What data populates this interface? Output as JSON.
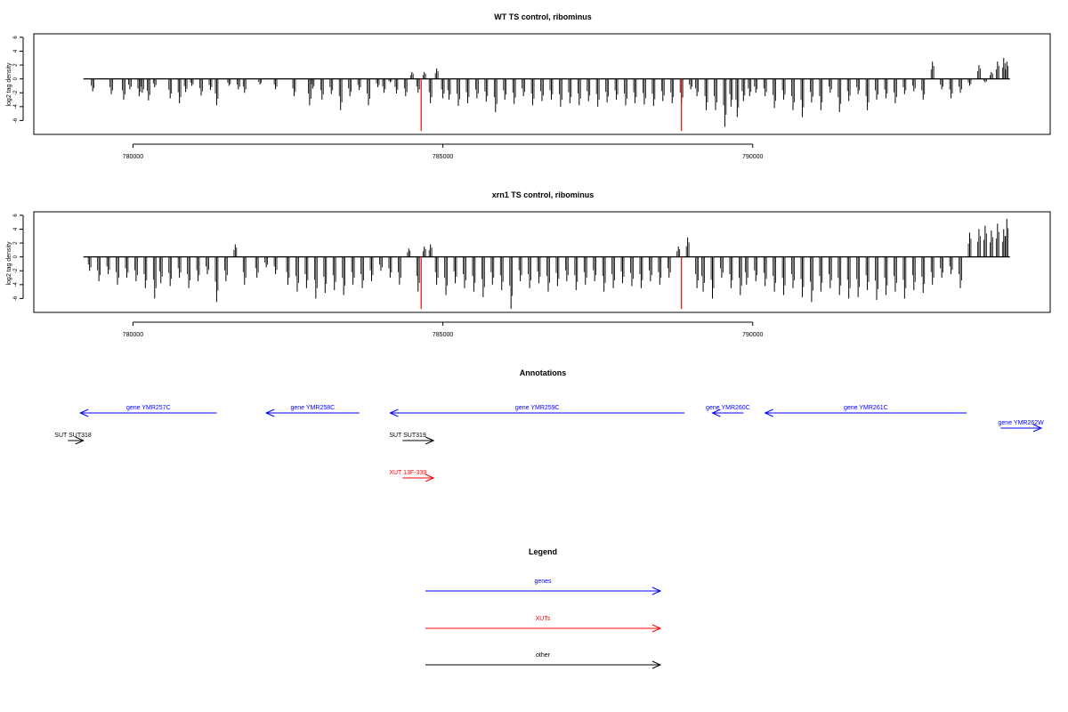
{
  "colors": {
    "gene": "#0000ff",
    "xut": "#ff0000",
    "other": "#000000",
    "bar": "#000000",
    "highlight": "#ff0000"
  },
  "chart_data": [
    {
      "type": "bar",
      "title": "WT TS control, ribominus",
      "ylabel": "log2 tag density",
      "xlim": [
        778400,
        794800
      ],
      "ylim": [
        -8,
        6.5
      ],
      "yticks": [
        6,
        4,
        2,
        0,
        -2,
        -4,
        -6
      ],
      "xticks": [
        780000,
        785000,
        790000
      ],
      "xtick_labels": [
        "780000",
        "785000",
        "790000"
      ],
      "baseline_range": [
        779200,
        794150
      ],
      "highlight_positions": [
        784650,
        788850
      ],
      "highlight_value": -7.5,
      "series": [
        {
          "x": [
            779350,
            779650,
            779850,
            779950,
            780100,
            780150,
            780250,
            780350,
            780600,
            780750,
            780850,
            780950,
            781100,
            781250,
            781350,
            781550,
            781700,
            781800,
            782050,
            782300,
            782600,
            782850,
            782900,
            783050,
            783200,
            783350,
            783500,
            783650,
            783800,
            783950,
            784050,
            784150,
            784250,
            784400,
            784500,
            784600,
            784700,
            784800,
            784900,
            785000,
            785100,
            785250,
            785400,
            785550,
            785700,
            785850,
            786000,
            786150,
            786300,
            786450,
            786600,
            786750,
            786900,
            787050,
            787200,
            787350,
            787500,
            787650,
            787800,
            787950,
            788100,
            788250,
            788400,
            788550,
            788700,
            788850,
            789000,
            789100,
            789250,
            789400,
            789550,
            789650,
            789750,
            789850,
            789950,
            790050,
            790200,
            790350,
            790500,
            790650,
            790800,
            790950,
            791100,
            791250,
            791400,
            791550,
            791700,
            791850,
            792000,
            792150,
            792300,
            792450,
            792600,
            792750,
            792900,
            793050,
            793200,
            793350,
            793500,
            793650,
            793750,
            793850,
            793950,
            794050,
            794100
          ],
          "y": [
            -1.8,
            -2.2,
            -3.0,
            -1.5,
            -2.5,
            -2.0,
            -3.1,
            -1.2,
            -2.8,
            -3.5,
            -1.9,
            -1.0,
            -2.4,
            -1.6,
            -3.8,
            -1.0,
            -1.5,
            -2.0,
            -0.8,
            -1.5,
            -2.5,
            -3.8,
            -1.4,
            -3.0,
            -2.2,
            -4.5,
            -2.5,
            -1.6,
            -3.8,
            -1.2,
            -2.0,
            -0.5,
            -2.1,
            -2.5,
            1.0,
            -2.0,
            1.0,
            -3.5,
            1.5,
            -2.8,
            -3.0,
            -3.9,
            -3.5,
            -2.8,
            -3.3,
            -4.8,
            -3.0,
            -3.6,
            -2.5,
            -3.8,
            -3.2,
            -3.0,
            -4.0,
            -3.5,
            -3.8,
            -3.2,
            -4.0,
            -3.4,
            -3.0,
            -3.8,
            -3.5,
            -3.7,
            -3.9,
            -3.2,
            -3.5,
            -3.6,
            -1.5,
            -2.5,
            -4.5,
            -4.5,
            -6.9,
            -4.0,
            -5.5,
            -3.2,
            -2.5,
            -2.0,
            -2.5,
            -4.2,
            -3.0,
            -4.5,
            -5.5,
            -3.4,
            -4.5,
            -2.0,
            -4.8,
            -3.2,
            -2.2,
            -4.5,
            -3.0,
            -2.8,
            -3.5,
            -2.2,
            -1.8,
            -3.0,
            2.5,
            -1.5,
            -2.8,
            -2.0,
            -1.0,
            2.0,
            -0.5,
            1.0,
            2.5,
            3.0,
            2.5
          ]
        }
      ]
    },
    {
      "type": "bar",
      "title": "xrn1 TS control, ribominus",
      "ylabel": "log2 tag density",
      "xlim": [
        778400,
        794800
      ],
      "ylim": [
        -8,
        6.5
      ],
      "yticks": [
        6,
        4,
        2,
        0,
        -2,
        -4,
        -6
      ],
      "xticks": [
        780000,
        785000,
        790000
      ],
      "xtick_labels": [
        "780000",
        "785000",
        "790000"
      ],
      "baseline_range": [
        779200,
        794150
      ],
      "highlight_positions": [
        784650,
        788850
      ],
      "highlight_value": -7.5,
      "series": [
        {
          "x": [
            779300,
            779450,
            779600,
            779750,
            779900,
            780050,
            780200,
            780350,
            780450,
            780600,
            780750,
            780900,
            781050,
            781200,
            781350,
            781500,
            781650,
            781800,
            782000,
            782150,
            782300,
            782500,
            782650,
            782800,
            782950,
            783100,
            783250,
            783400,
            783550,
            783700,
            783850,
            784000,
            784150,
            784300,
            784450,
            784600,
            784700,
            784800,
            784900,
            785050,
            785200,
            785350,
            785500,
            785650,
            785800,
            785950,
            786100,
            786250,
            786400,
            786550,
            786700,
            786850,
            787000,
            787150,
            787300,
            787450,
            787600,
            787750,
            787900,
            788050,
            788200,
            788350,
            788500,
            788650,
            788800,
            788950,
            789100,
            789200,
            789350,
            789500,
            789650,
            789800,
            789900,
            790050,
            790200,
            790350,
            790500,
            790650,
            790800,
            790950,
            791100,
            791250,
            791400,
            791550,
            791700,
            791850,
            792000,
            792150,
            792300,
            792450,
            792600,
            792750,
            792900,
            793050,
            793200,
            793350,
            793500,
            793650,
            793750,
            793850,
            793950,
            794050,
            794100
          ],
          "y": [
            -2.0,
            -3.5,
            -2.5,
            -4.0,
            -3.0,
            -3.5,
            -4.5,
            -6.0,
            -3.8,
            -4.2,
            -3.0,
            -4.5,
            -3.5,
            -2.5,
            -6.5,
            -3.5,
            1.8,
            -4.0,
            -3.0,
            -1.5,
            -2.5,
            -4.0,
            -5.0,
            -4.5,
            -6.0,
            -5.2,
            -4.8,
            -5.5,
            -4.0,
            -4.5,
            -3.5,
            -2.0,
            -3.0,
            -4.0,
            1.2,
            -5.0,
            1.5,
            1.8,
            -4.0,
            -5.5,
            -3.8,
            -4.5,
            -5.0,
            -5.8,
            -4.0,
            -4.8,
            -7.5,
            -3.5,
            -4.5,
            -3.8,
            -5.0,
            -4.2,
            -3.5,
            -4.8,
            -4.0,
            -3.5,
            -5.0,
            -4.5,
            -3.8,
            -4.2,
            -4.5,
            -3.5,
            -4.0,
            -3.0,
            1.5,
            2.8,
            -4.5,
            -5.0,
            -6.0,
            -3.0,
            -4.5,
            -5.5,
            -4.0,
            -3.5,
            -4.2,
            -5.0,
            -5.5,
            -4.5,
            -5.8,
            -6.5,
            -5.0,
            -4.5,
            -5.5,
            -6.0,
            -5.8,
            -4.8,
            -6.2,
            -5.5,
            -5.0,
            -6.0,
            -4.8,
            -5.2,
            -4.0,
            -3.0,
            -2.5,
            -4.5,
            3.5,
            4.0,
            4.5,
            3.8,
            4.8,
            4.0,
            5.5
          ]
        }
      ]
    }
  ],
  "annotations": {
    "title": "Annotations",
    "genes": [
      {
        "label": "gene YMR257C",
        "start": 781350,
        "end": 779150,
        "row": 0
      },
      {
        "label": "gene YMR258C",
        "start": 783650,
        "end": 782150,
        "row": 0
      },
      {
        "label": "gene YMR259C",
        "start": 788900,
        "end": 784150,
        "row": 0
      },
      {
        "label": "gene YMR260C",
        "start": 789850,
        "end": 789350,
        "row": 0
      },
      {
        "label": "gene YMR261C",
        "start": 793450,
        "end": 790200,
        "row": 0
      },
      {
        "label": "gene YMR262W",
        "start": 794000,
        "end": 794900,
        "row": -1
      }
    ],
    "others": [
      {
        "label": "SUT SUT318",
        "start": 778950,
        "end": 779200,
        "row": 1
      },
      {
        "label": "SUT SUT319",
        "start": 784350,
        "end": 784850,
        "row": 1
      }
    ],
    "xuts": [
      {
        "label": "XUT 13F-339",
        "start": 784350,
        "end": 784850,
        "row": 2
      }
    ]
  },
  "legend": {
    "title": "Legend",
    "items": [
      {
        "label": "genes",
        "color": "#0000ff"
      },
      {
        "label": "XUTs",
        "color": "#ff0000"
      },
      {
        "label": "other",
        "color": "#000000"
      }
    ]
  }
}
